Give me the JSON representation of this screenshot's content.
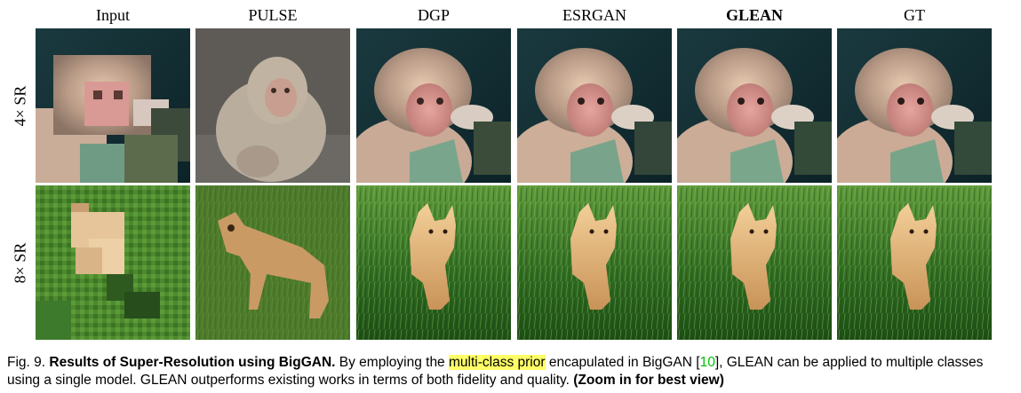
{
  "columns": [
    "Input",
    "PULSE",
    "DGP",
    "ESRGAN",
    "GLEAN",
    "GT"
  ],
  "rows": [
    "4× SR",
    "8× SR"
  ],
  "caption": {
    "fig_label": "Fig. 9.",
    "title": "Results of Super-Resolution using BigGAN.",
    "text_before_highlight": "By employing the",
    "highlight": "multi-class prior",
    "text_before_ref": "encapulated in BigGAN [",
    "ref": "10",
    "text_after_ref": "], GLEAN can be applied to multiple classes using a single model. GLEAN outperforms existing works in terms of both fidelity and quality.",
    "zoom_note": "(Zoom in for best view)"
  }
}
